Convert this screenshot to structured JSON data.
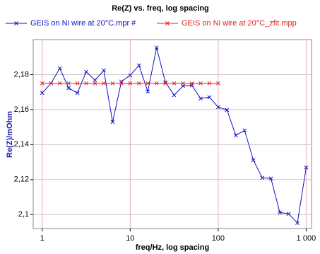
{
  "chart_data": {
    "type": "line",
    "title": "Re(Z) vs. freq, log spacing",
    "x_label": "freq/Hz, log spacing",
    "y_label": "Re(Z)/mOhm",
    "x_log": true,
    "grid": true,
    "xlim": [
      0.79,
      1150
    ],
    "ylim": [
      2.092,
      2.2
    ],
    "xticks": [
      1,
      10,
      100,
      {
        "value": 1000,
        "label": "1 000"
      }
    ],
    "yticks": [
      {
        "value": 2.1,
        "label": "2,1"
      },
      {
        "value": 2.12,
        "label": "2,12"
      },
      {
        "value": 2.14,
        "label": "2,14"
      },
      {
        "value": 2.16,
        "label": "2,16"
      },
      {
        "value": 2.18,
        "label": "2,18"
      }
    ],
    "series": [
      {
        "name": "GEIS on Ni wire at 20°C.mpr #",
        "color": "#1010c8",
        "x": [
          1,
          1.259,
          1.585,
          1.995,
          2.512,
          3.162,
          3.981,
          5.012,
          6.31,
          7.943,
          10,
          12.59,
          15.85,
          19.95,
          25.12,
          31.62,
          39.81,
          50.12,
          63.1,
          79.43,
          100,
          125.9,
          158.5,
          199.5,
          251.2,
          316.2,
          398.1,
          501.2,
          631,
          794.3,
          1000
        ],
        "values": [
          2.1695,
          2.175,
          2.1836,
          2.1723,
          2.1695,
          2.1816,
          2.1768,
          2.1824,
          2.1529,
          2.176,
          2.1796,
          2.1853,
          2.1703,
          2.1954,
          2.1756,
          2.1683,
          2.1735,
          2.1739,
          2.1663,
          2.1671,
          2.1614,
          2.1598,
          2.1453,
          2.1481,
          2.1311,
          2.121,
          2.1206,
          2.1012,
          2.1004,
          2.0952,
          2.1269
        ]
      },
      {
        "name": "GEIS on Ni wire at 20°C_zfit.mpp",
        "color": "#e02020",
        "x": [
          1,
          1.259,
          1.585,
          1.995,
          2.512,
          3.162,
          3.981,
          5.012,
          6.31,
          7.943,
          10,
          12.59,
          15.85,
          19.95,
          25.12,
          31.62,
          39.81,
          50.12,
          63.1,
          79.43,
          100
        ],
        "values": [
          2.175,
          2.175,
          2.175,
          2.175,
          2.175,
          2.175,
          2.175,
          2.175,
          2.175,
          2.175,
          2.175,
          2.175,
          2.175,
          2.175,
          2.175,
          2.175,
          2.175,
          2.175,
          2.175,
          2.175,
          2.175
        ]
      }
    ]
  }
}
